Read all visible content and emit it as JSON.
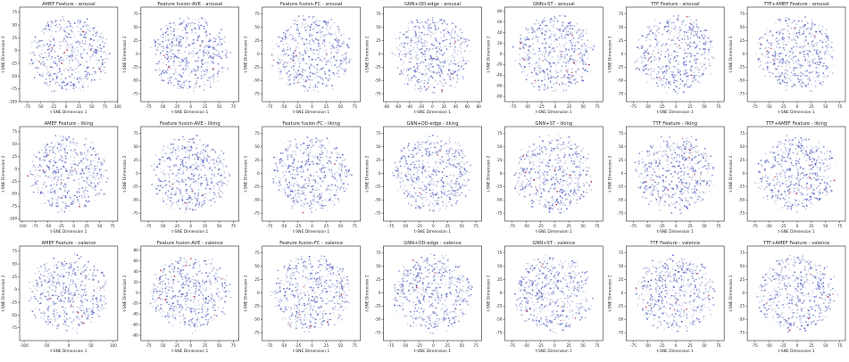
{
  "figure": {
    "xlabel": "t-SNE Dimension 1",
    "ylabel": "t-SNE Dimension 2",
    "colors": {
      "low": "#3b4cc0",
      "mid": "#dddcdc",
      "high": "#b40426"
    }
  },
  "chart_data": [
    {
      "type": "scatter",
      "title": "AMEF Feature - arousal",
      "xlim": [
        -90,
        100
      ],
      "ylim": [
        -100,
        85
      ],
      "xticks": [
        -75,
        -50,
        -25,
        0,
        25,
        50,
        75,
        100
      ],
      "yticks": [
        -100,
        -75,
        -50,
        -25,
        0,
        25,
        50,
        75
      ]
    },
    {
      "type": "scatter",
      "title": "Feature fusion-AVE - arousal",
      "xlim": [
        -88,
        85
      ],
      "ylim": [
        -90,
        88
      ],
      "xticks": [
        -75,
        -50,
        -25,
        0,
        25,
        50,
        75
      ],
      "yticks": [
        -75,
        -50,
        -25,
        0,
        25,
        50,
        75
      ]
    },
    {
      "type": "scatter",
      "title": "Feature fusion-FC - arousal",
      "xlim": [
        -88,
        85
      ],
      "ylim": [
        -90,
        88
      ],
      "xticks": [
        -75,
        -50,
        -25,
        0,
        25,
        50,
        75
      ],
      "yticks": [
        -75,
        -50,
        -25,
        0,
        25,
        50,
        75
      ]
    },
    {
      "type": "scatter",
      "title": "GNN+OD-edge - arousal",
      "xlim": [
        -85,
        85
      ],
      "ylim": [
        -90,
        88
      ],
      "xticks": [
        -80,
        -60,
        -40,
        -20,
        0,
        20,
        40,
        60,
        80
      ],
      "yticks": [
        -75,
        -50,
        -25,
        0,
        25,
        50,
        75
      ]
    },
    {
      "type": "scatter",
      "title": "GNN+ST - arousal",
      "xlim": [
        -90,
        85
      ],
      "ylim": [
        -90,
        88
      ],
      "xticks": [
        -75,
        -50,
        -25,
        0,
        25,
        50,
        75
      ],
      "yticks": [
        -80,
        -60,
        -40,
        -20,
        0,
        20,
        40,
        60,
        80
      ]
    },
    {
      "type": "scatter",
      "title": "TTF Feature - arousal",
      "xlim": [
        -88,
        85
      ],
      "ylim": [
        -90,
        88
      ],
      "xticks": [
        -75,
        -50,
        -25,
        0,
        25,
        50,
        75
      ],
      "yticks": [
        -75,
        -50,
        -25,
        0,
        25,
        50,
        75
      ]
    },
    {
      "type": "scatter",
      "title": "TTF+AMEF Feature - arousal",
      "xlim": [
        -88,
        85
      ],
      "ylim": [
        -90,
        88
      ],
      "xticks": [
        -75,
        -50,
        -25,
        0,
        25,
        50,
        75
      ],
      "yticks": [
        -75,
        -50,
        -25,
        0,
        25,
        50,
        75
      ]
    },
    {
      "type": "scatter",
      "title": "AMEF Feature - liking",
      "xlim": [
        -105,
        85
      ],
      "ylim": [
        -105,
        85
      ],
      "xticks": [
        -100,
        -75,
        -50,
        -25,
        0,
        25,
        50,
        75
      ],
      "yticks": [
        -100,
        -75,
        -50,
        -25,
        0,
        25,
        50,
        75
      ]
    },
    {
      "type": "scatter",
      "title": "Feature fusion-AVE - liking",
      "xlim": [
        -88,
        85
      ],
      "ylim": [
        -90,
        88
      ],
      "xticks": [
        -75,
        -50,
        -25,
        0,
        25,
        50,
        75
      ],
      "yticks": [
        -75,
        -50,
        -25,
        0,
        25,
        50,
        75
      ]
    },
    {
      "type": "scatter",
      "title": "Feature fusion-FC - liking",
      "xlim": [
        -88,
        85
      ],
      "ylim": [
        -90,
        88
      ],
      "xticks": [
        -75,
        -50,
        -25,
        0,
        25,
        50,
        75
      ],
      "yticks": [
        -75,
        -50,
        -25,
        0,
        25,
        50,
        75
      ]
    },
    {
      "type": "scatter",
      "title": "GNN+OD-edge - liking",
      "xlim": [
        -88,
        85
      ],
      "ylim": [
        -90,
        88
      ],
      "xticks": [
        -75,
        -50,
        -25,
        0,
        25,
        50,
        75
      ],
      "yticks": [
        -75,
        -50,
        -25,
        0,
        25,
        50,
        75
      ]
    },
    {
      "type": "scatter",
      "title": "GNN+ST - liking",
      "xlim": [
        -88,
        85
      ],
      "ylim": [
        -90,
        88
      ],
      "xticks": [
        -75,
        -50,
        -25,
        0,
        25,
        50,
        75
      ],
      "yticks": [
        -75,
        -50,
        -25,
        0,
        25,
        50,
        75
      ]
    },
    {
      "type": "scatter",
      "title": "TTF Feature - liking",
      "xlim": [
        -88,
        85
      ],
      "ylim": [
        -90,
        88
      ],
      "xticks": [
        -75,
        -50,
        -25,
        0,
        25,
        50,
        75
      ],
      "yticks": [
        -75,
        -50,
        -25,
        0,
        25,
        50,
        75
      ]
    },
    {
      "type": "scatter",
      "title": "TTF+AMEF Feature - liking",
      "xlim": [
        -88,
        85
      ],
      "ylim": [
        -90,
        88
      ],
      "xticks": [
        -75,
        -50,
        -25,
        0,
        25,
        50,
        75
      ],
      "yticks": [
        -75,
        -50,
        -25,
        0,
        25,
        50,
        75
      ]
    },
    {
      "type": "scatter",
      "title": "AMEF Feature - valence",
      "xlim": [
        -110,
        110
      ],
      "ylim": [
        -100,
        85
      ],
      "xticks": [
        -100,
        -50,
        0,
        50,
        100
      ],
      "yticks": [
        -75,
        -50,
        -25,
        0,
        25,
        50,
        75
      ]
    },
    {
      "type": "scatter",
      "title": "Feature fusion-AVE - valence",
      "xlim": [
        -88,
        85
      ],
      "ylim": [
        -90,
        88
      ],
      "xticks": [
        -75,
        -50,
        -25,
        0,
        25,
        50,
        75
      ],
      "yticks": [
        -80,
        -60,
        -40,
        -20,
        0,
        20,
        40,
        60,
        80
      ]
    },
    {
      "type": "scatter",
      "title": "Feature fusion-FC - valence",
      "xlim": [
        -88,
        85
      ],
      "ylim": [
        -90,
        88
      ],
      "xticks": [
        -75,
        -50,
        -25,
        0,
        25,
        50,
        75
      ],
      "yticks": [
        -75,
        -50,
        -25,
        0,
        25,
        50,
        75
      ]
    },
    {
      "type": "scatter",
      "title": "GNN+OD-edge - valence",
      "xlim": [
        -88,
        85
      ],
      "ylim": [
        -90,
        88
      ],
      "xticks": [
        -75,
        -50,
        -25,
        0,
        25,
        50,
        75
      ],
      "yticks": [
        -75,
        -50,
        -25,
        0,
        25,
        50,
        75
      ]
    },
    {
      "type": "scatter",
      "title": "GNN+ST - valence",
      "xlim": [
        -88,
        85
      ],
      "ylim": [
        -90,
        88
      ],
      "xticks": [
        -75,
        -50,
        -25,
        0,
        25,
        50,
        75
      ],
      "yticks": [
        -75,
        -50,
        -25,
        0,
        25,
        50,
        75
      ]
    },
    {
      "type": "scatter",
      "title": "TTF Feature - valence",
      "xlim": [
        -88,
        85
      ],
      "ylim": [
        -90,
        88
      ],
      "xticks": [
        -75,
        -50,
        -25,
        0,
        25,
        50,
        75
      ],
      "yticks": [
        -75,
        -50,
        -25,
        0,
        25,
        50,
        75
      ]
    },
    {
      "type": "scatter",
      "title": "TTF+AMEF Feature - valence",
      "xlim": [
        -88,
        85
      ],
      "ylim": [
        -90,
        88
      ],
      "xticks": [
        -75,
        -50,
        -25,
        0,
        25,
        50,
        75
      ],
      "yticks": [
        -75,
        -50,
        -25,
        0,
        25,
        50,
        75
      ]
    }
  ]
}
